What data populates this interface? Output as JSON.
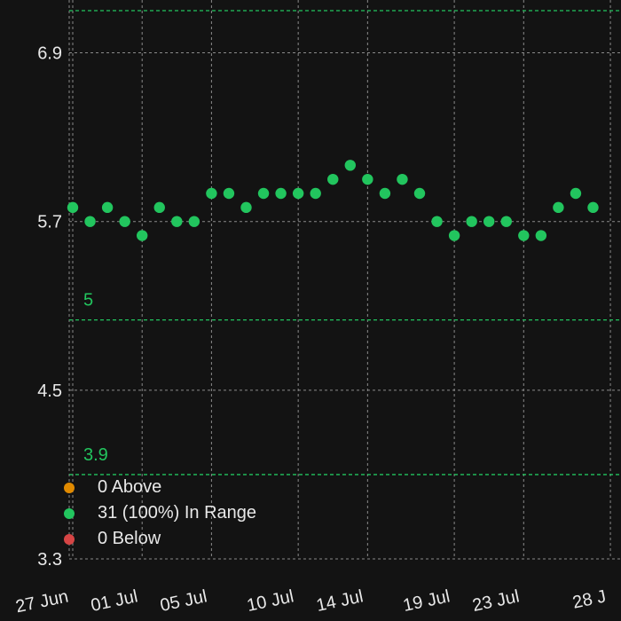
{
  "chart_data": {
    "type": "scatter",
    "y_ticks": [
      3.3,
      4.5,
      5.7,
      6.9
    ],
    "ylim": [
      3.3,
      7.2
    ],
    "x_ticks": [
      {
        "label": "27 Jun",
        "day": 0
      },
      {
        "label": "01 Jul",
        "day": 4
      },
      {
        "label": "05 Jul",
        "day": 8
      },
      {
        "label": "10 Jul",
        "day": 13
      },
      {
        "label": "14 Jul",
        "day": 17
      },
      {
        "label": "19 Jul",
        "day": 22
      },
      {
        "label": "23 Jul",
        "day": 26
      },
      {
        "label": "28 J",
        "day": 31
      }
    ],
    "reference_lines": [
      {
        "value": 7.2,
        "label": ""
      },
      {
        "value": 5.0,
        "label": "5"
      },
      {
        "value": 3.9,
        "label": "3.9"
      }
    ],
    "points": [
      {
        "x": "27 Jun",
        "y": 5.8
      },
      {
        "x": "28 Jun",
        "y": 5.7
      },
      {
        "x": "29 Jun",
        "y": 5.8
      },
      {
        "x": "30 Jun",
        "y": 5.7
      },
      {
        "x": "01 Jul",
        "y": 5.6
      },
      {
        "x": "02 Jul",
        "y": 5.8
      },
      {
        "x": "03 Jul",
        "y": 5.7
      },
      {
        "x": "04 Jul",
        "y": 5.7
      },
      {
        "x": "05 Jul",
        "y": 5.9
      },
      {
        "x": "06 Jul",
        "y": 5.9
      },
      {
        "x": "07 Jul",
        "y": 5.8
      },
      {
        "x": "08 Jul",
        "y": 5.9
      },
      {
        "x": "09 Jul",
        "y": 5.9
      },
      {
        "x": "10 Jul",
        "y": 5.9
      },
      {
        "x": "11 Jul",
        "y": 5.9
      },
      {
        "x": "12 Jul",
        "y": 6.0
      },
      {
        "x": "13 Jul",
        "y": 6.1
      },
      {
        "x": "14 Jul",
        "y": 6.0
      },
      {
        "x": "15 Jul",
        "y": 5.9
      },
      {
        "x": "16 Jul",
        "y": 6.0
      },
      {
        "x": "17 Jul",
        "y": 5.9
      },
      {
        "x": "18 Jul",
        "y": 5.7
      },
      {
        "x": "19 Jul",
        "y": 5.6
      },
      {
        "x": "20 Jul",
        "y": 5.7
      },
      {
        "x": "21 Jul",
        "y": 5.7
      },
      {
        "x": "22 Jul",
        "y": 5.7
      },
      {
        "x": "23 Jul",
        "y": 5.6
      },
      {
        "x": "24 Jul",
        "y": 5.6
      },
      {
        "x": "25 Jul",
        "y": 5.8
      },
      {
        "x": "26 Jul",
        "y": 5.9
      },
      {
        "x": "27 Jul",
        "y": 5.8
      }
    ],
    "grid": true
  },
  "legend": {
    "items": [
      {
        "label": "0 Above",
        "color": "#e08a00"
      },
      {
        "label": "31 (100%) In Range",
        "color": "#22c55e"
      },
      {
        "label": "0 Below",
        "color": "#d64545"
      }
    ]
  },
  "colors": {
    "point": "#22c55e",
    "reference_line": "#22c55e",
    "grid": "#8a8a8a"
  }
}
